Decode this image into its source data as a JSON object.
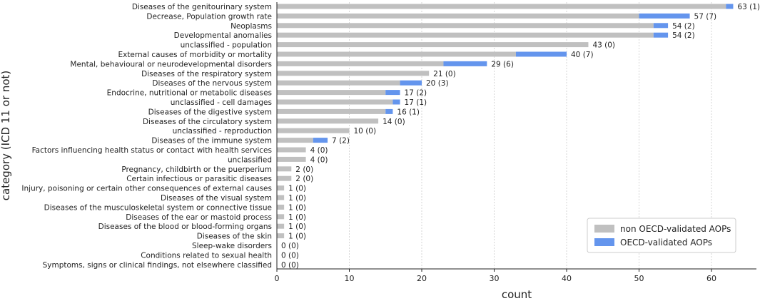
{
  "chart_data": {
    "type": "bar",
    "orientation": "horizontal",
    "stacked": true,
    "xlabel": "count",
    "ylabel": "category (ICD 11 or not)",
    "xlim": [
      0,
      66
    ],
    "xticks": [
      0,
      10,
      20,
      30,
      40,
      50,
      60
    ],
    "grid": "vertical dashed",
    "legend_position": "bottom-right",
    "colors": {
      "non_oecd": "#c0c0c0",
      "oecd": "#6495ed"
    },
    "series": [
      {
        "name": "non OECD-validated AOPs",
        "key": "non_oecd"
      },
      {
        "name": "OECD-validated AOPs",
        "key": "oecd"
      }
    ],
    "categories": [
      "Diseases of the genitourinary system",
      "Decrease, Population growth rate",
      "Neoplasms",
      "Developmental anomalies",
      "unclassified - population",
      "External causes of morbidity or mortality",
      "Mental, behavioural or neurodevelopmental disorders",
      "Diseases of the respiratory system",
      "Diseases of the nervous system",
      "Endocrine, nutritional or metabolic diseases",
      "unclassified - cell damages",
      "Diseases of the digestive system",
      "Diseases of the circulatory system",
      "unclassified - reproduction",
      "Diseases of the immune system",
      "Factors influencing health status or contact with health services",
      "unclassified",
      "Pregnancy, childbirth or the puerperium",
      "Certain infectious or parasitic diseases",
      "Injury, poisoning or certain other consequences of external causes",
      "Diseases of the visual system",
      "Diseases of the musculoskeletal system or connective tissue",
      "Diseases of the ear or mastoid process",
      "Diseases of the blood or blood-forming organs",
      "Diseases of the skin",
      "Sleep-wake disorders",
      "Conditions related to sexual health",
      "Symptoms, signs or clinical findings, not elsewhere classified"
    ],
    "totals": [
      63,
      57,
      54,
      54,
      43,
      40,
      29,
      21,
      20,
      17,
      17,
      16,
      14,
      10,
      7,
      4,
      4,
      2,
      2,
      1,
      1,
      1,
      1,
      1,
      1,
      0,
      0,
      0
    ],
    "oecd_counts": [
      1,
      7,
      2,
      2,
      0,
      7,
      6,
      0,
      3,
      2,
      1,
      1,
      0,
      0,
      2,
      0,
      0,
      0,
      0,
      0,
      0,
      0,
      0,
      0,
      0,
      0,
      0,
      0
    ],
    "value_labels": [
      "63 (1)",
      "57 (7)",
      "54 (2)",
      "54 (2)",
      "43 (0)",
      "40 (7)",
      "29 (6)",
      "21 (0)",
      "20 (3)",
      "17 (2)",
      "17 (1)",
      "16 (1)",
      "14 (0)",
      "10 (0)",
      "7 (2)",
      "4 (0)",
      "4 (0)",
      "2 (0)",
      "2 (0)",
      "1 (0)",
      "1 (0)",
      "1 (0)",
      "1 (0)",
      "1 (0)",
      "1 (0)",
      "0 (0)",
      "0 (0)",
      "0 (0)"
    ]
  }
}
